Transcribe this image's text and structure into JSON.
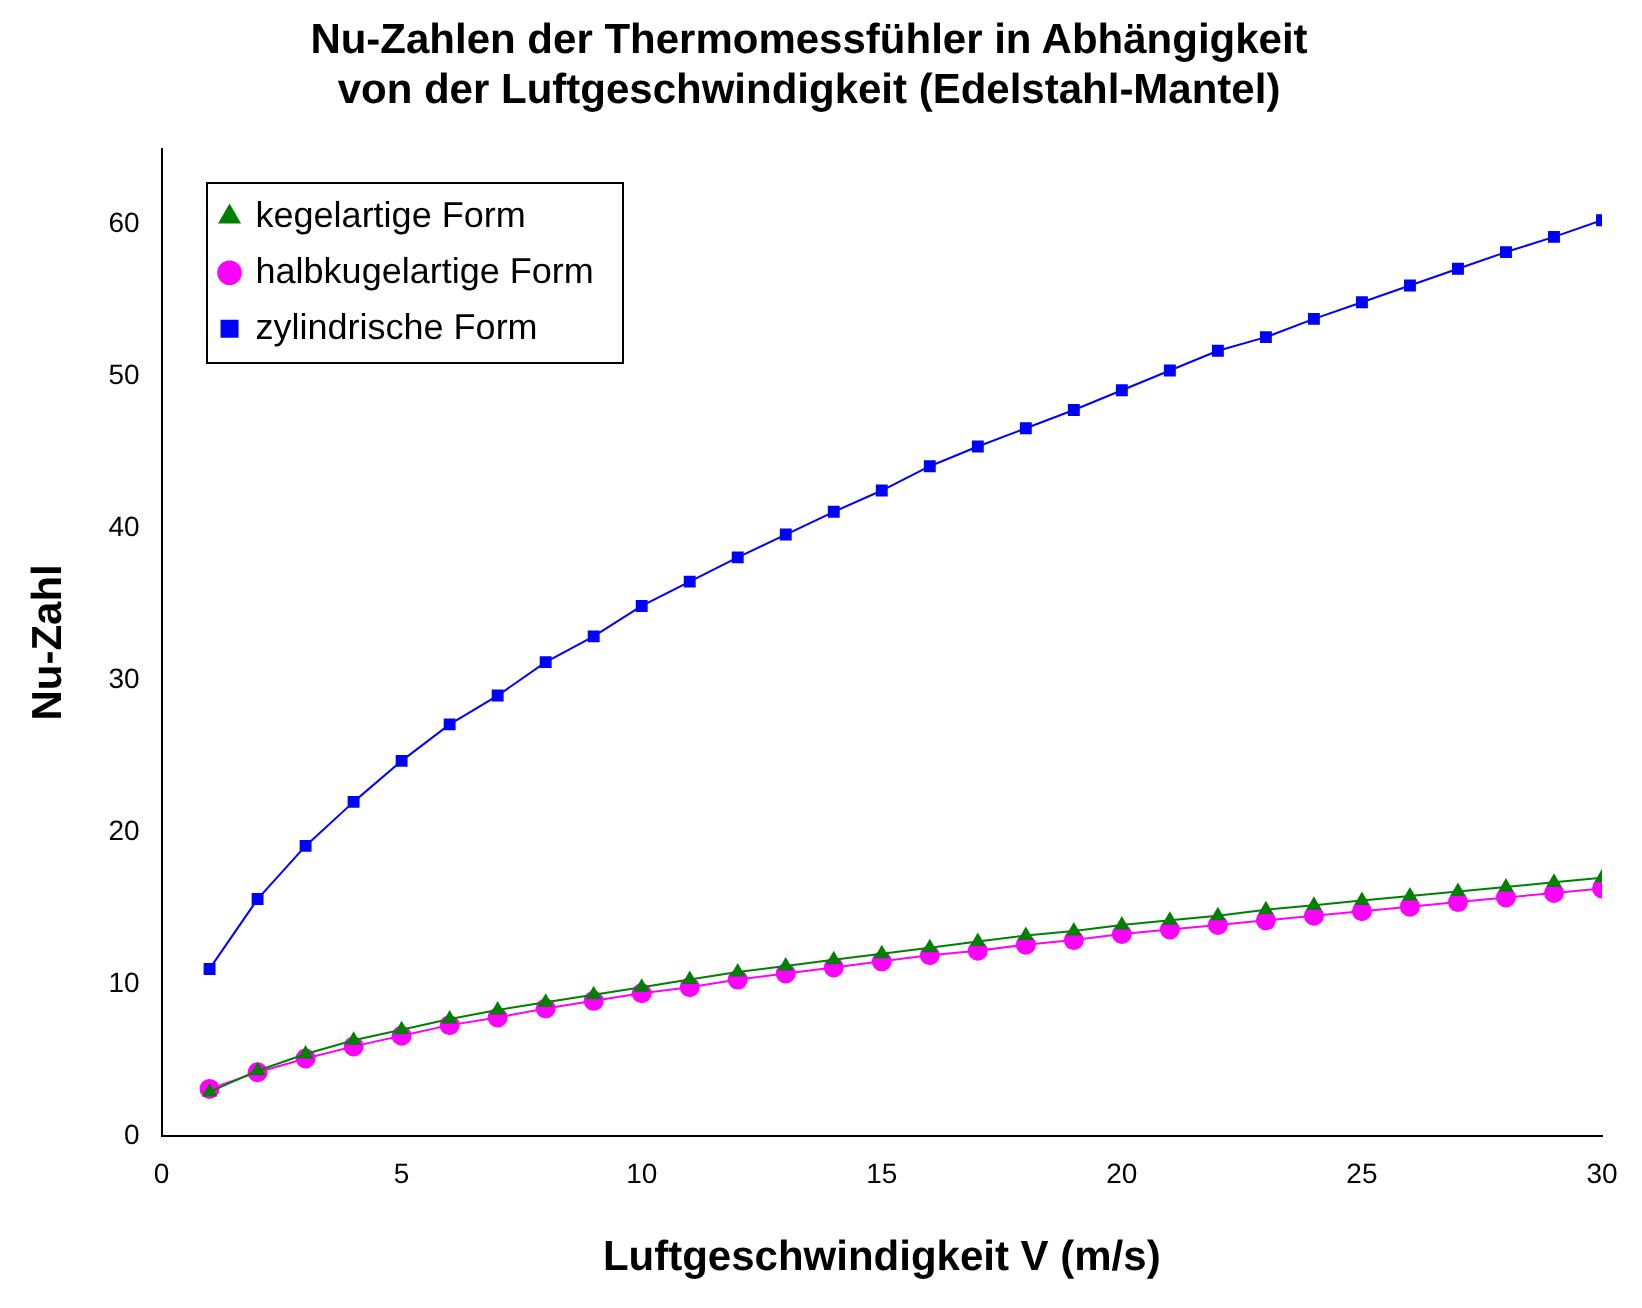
{
  "chart_data": {
    "type": "line",
    "title": "Nu-Zahlen der Thermomessfühler in Abhängigkeit von der Luftgeschwindigkeit (Edelstahl-Mantel)",
    "xlabel": "Luftgeschwindigkeit V (m/s)",
    "ylabel": "Nu-Zahl",
    "x": [
      1,
      2,
      3,
      4,
      5,
      6,
      7,
      8,
      9,
      10,
      11,
      12,
      13,
      14,
      15,
      16,
      17,
      18,
      19,
      20,
      21,
      22,
      23,
      24,
      25,
      26,
      27,
      28,
      29,
      30
    ],
    "series": [
      {
        "name": "kegelartige Form",
        "color": "#008000",
        "marker": "triangle",
        "values": [
          2.9,
          4.3,
          5.4,
          6.3,
          7.0,
          7.7,
          8.3,
          8.8,
          9.3,
          9.8,
          10.3,
          10.8,
          11.2,
          11.6,
          12.0,
          12.4,
          12.8,
          13.2,
          13.5,
          13.9,
          14.2,
          14.5,
          14.9,
          15.2,
          15.5,
          15.8,
          16.1,
          16.4,
          16.7,
          17.0
        ]
      },
      {
        "name": "halbkugelartige Form",
        "color": "#ff00ff",
        "marker": "circle",
        "values": [
          3.1,
          4.2,
          5.1,
          5.9,
          6.6,
          7.3,
          7.8,
          8.4,
          8.9,
          9.4,
          9.8,
          10.3,
          10.7,
          11.1,
          11.5,
          11.9,
          12.2,
          12.6,
          12.9,
          13.3,
          13.6,
          13.9,
          14.2,
          14.5,
          14.8,
          15.1,
          15.4,
          15.7,
          16.0,
          16.3
        ]
      },
      {
        "name": "zylindrische Form",
        "color": "#0000ff",
        "marker": "square",
        "values": [
          11.0,
          15.6,
          19.1,
          22.0,
          24.7,
          27.1,
          29.0,
          31.2,
          32.9,
          34.9,
          36.5,
          38.1,
          39.6,
          41.1,
          42.5,
          44.1,
          45.4,
          46.6,
          47.8,
          49.1,
          50.4,
          51.7,
          52.6,
          53.8,
          54.9,
          56.0,
          57.1,
          58.2,
          59.2,
          60.3
        ]
      }
    ],
    "xlim": [
      0,
      30
    ],
    "xticks": [
      0,
      5,
      10,
      15,
      20,
      25,
      30
    ],
    "ylim": [
      0,
      65
    ],
    "yticks": [
      0,
      10,
      20,
      30,
      40,
      50,
      60
    ],
    "grid": false,
    "legend": "top left",
    "line_style": "solid"
  }
}
